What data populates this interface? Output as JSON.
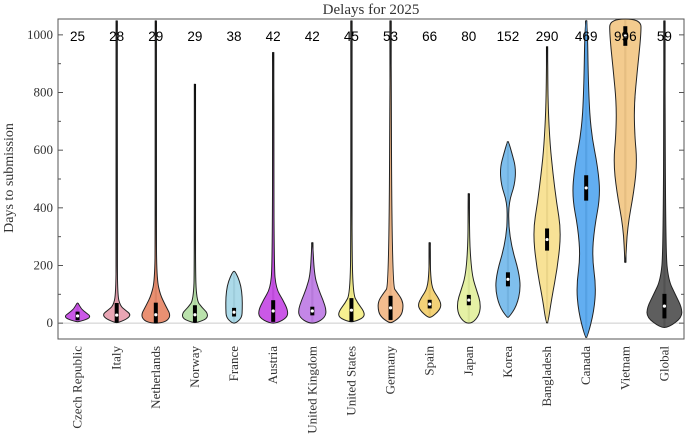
{
  "chart_data": {
    "type": "violin",
    "title": "Delays for 2025",
    "ylabel": "Days to submission",
    "xlabel": "",
    "ylim": [
      -55,
      1055
    ],
    "yticks": [
      0,
      200,
      400,
      600,
      800,
      1000
    ],
    "grid": false,
    "series": [
      {
        "category": "Czech Republic",
        "median": 25,
        "color": "#c74fe6",
        "min": 5,
        "max": 70,
        "shape": [
          [
            5,
            0.06
          ],
          [
            15,
            0.55
          ],
          [
            25,
            0.65
          ],
          [
            35,
            0.45
          ],
          [
            50,
            0.18
          ],
          [
            70,
            0.03
          ]
        ]
      },
      {
        "category": "Italy",
        "median": 28,
        "color": "#e8a0b0",
        "min": 2,
        "max": 1050,
        "shape": [
          [
            2,
            0.08
          ],
          [
            15,
            0.55
          ],
          [
            30,
            0.72
          ],
          [
            45,
            0.45
          ],
          [
            60,
            0.18
          ],
          [
            100,
            0.04
          ],
          [
            300,
            0.02
          ],
          [
            1050,
            0.02
          ]
        ]
      },
      {
        "category": "Netherlands",
        "median": 29,
        "color": "#e88a6a",
        "min": 0,
        "max": 1050,
        "shape": [
          [
            0,
            0.25
          ],
          [
            10,
            0.62
          ],
          [
            30,
            0.75
          ],
          [
            60,
            0.5
          ],
          [
            100,
            0.22
          ],
          [
            150,
            0.06
          ],
          [
            300,
            0.02
          ],
          [
            1050,
            0.02
          ]
        ]
      },
      {
        "category": "Norway",
        "median": 29,
        "color": "#b6e0a8",
        "min": 2,
        "max": 830,
        "shape": [
          [
            2,
            0.1
          ],
          [
            15,
            0.62
          ],
          [
            35,
            0.65
          ],
          [
            55,
            0.35
          ],
          [
            80,
            0.08
          ],
          [
            200,
            0.02
          ],
          [
            830,
            0.02
          ]
        ]
      },
      {
        "category": "France",
        "median": 38,
        "color": "#a8d8e8",
        "min": 0,
        "max": 180,
        "shape": [
          [
            0,
            0.1
          ],
          [
            20,
            0.4
          ],
          [
            50,
            0.42
          ],
          [
            90,
            0.42
          ],
          [
            130,
            0.35
          ],
          [
            160,
            0.2
          ],
          [
            180,
            0.04
          ]
        ]
      },
      {
        "category": "Austria",
        "median": 42,
        "color": "#c74fe6",
        "min": 0,
        "max": 940,
        "shape": [
          [
            0,
            0.2
          ],
          [
            20,
            0.72
          ],
          [
            45,
            0.75
          ],
          [
            80,
            0.5
          ],
          [
            120,
            0.15
          ],
          [
            200,
            0.04
          ],
          [
            940,
            0.02
          ]
        ]
      },
      {
        "category": "United Kingdom",
        "median": 42,
        "color": "#c080e6",
        "min": 0,
        "max": 280,
        "shape": [
          [
            0,
            0.2
          ],
          [
            20,
            0.65
          ],
          [
            45,
            0.72
          ],
          [
            80,
            0.55
          ],
          [
            120,
            0.3
          ],
          [
            170,
            0.1
          ],
          [
            280,
            0.02
          ]
        ]
      },
      {
        "category": "United States",
        "median": 45,
        "color": "#f5ef8a",
        "min": 5,
        "max": 1050,
        "shape": [
          [
            5,
            0.15
          ],
          [
            20,
            0.65
          ],
          [
            40,
            0.65
          ],
          [
            70,
            0.32
          ],
          [
            100,
            0.08
          ],
          [
            300,
            0.02
          ],
          [
            1050,
            0.02
          ]
        ]
      },
      {
        "category": "Germany",
        "median": 53,
        "color": "#f2b888",
        "min": 2,
        "max": 1050,
        "shape": [
          [
            2,
            0.1
          ],
          [
            25,
            0.55
          ],
          [
            55,
            0.65
          ],
          [
            80,
            0.6
          ],
          [
            105,
            0.35
          ],
          [
            130,
            0.08
          ],
          [
            1050,
            0.02
          ]
        ]
      },
      {
        "category": "Spain",
        "median": 66,
        "color": "#f2d070",
        "min": 20,
        "max": 280,
        "shape": [
          [
            20,
            0.1
          ],
          [
            45,
            0.5
          ],
          [
            65,
            0.6
          ],
          [
            90,
            0.42
          ],
          [
            120,
            0.12
          ],
          [
            180,
            0.03
          ],
          [
            280,
            0.02
          ]
        ]
      },
      {
        "category": "Japan",
        "median": 80,
        "color": "#e4f0a0",
        "min": 0,
        "max": 450,
        "shape": [
          [
            0,
            0.2
          ],
          [
            30,
            0.55
          ],
          [
            70,
            0.6
          ],
          [
            110,
            0.42
          ],
          [
            160,
            0.18
          ],
          [
            250,
            0.06
          ],
          [
            350,
            0.03
          ],
          [
            450,
            0.02
          ]
        ]
      },
      {
        "category": "Korea",
        "median": 152,
        "color": "#78bcec",
        "min": 20,
        "max": 630,
        "shape": [
          [
            20,
            0.05
          ],
          [
            60,
            0.45
          ],
          [
            120,
            0.65
          ],
          [
            180,
            0.55
          ],
          [
            260,
            0.2
          ],
          [
            340,
            0.03
          ],
          [
            420,
            0.05
          ],
          [
            480,
            0.35
          ],
          [
            540,
            0.4
          ],
          [
            590,
            0.2
          ],
          [
            630,
            0.03
          ]
        ]
      },
      {
        "category": "Bangladesh",
        "median": 290,
        "color": "#f8e090",
        "min": 0,
        "max": 960,
        "shape": [
          [
            0,
            0.05
          ],
          [
            80,
            0.22
          ],
          [
            200,
            0.55
          ],
          [
            320,
            0.72
          ],
          [
            420,
            0.48
          ],
          [
            520,
            0.3
          ],
          [
            620,
            0.15
          ],
          [
            760,
            0.05
          ],
          [
            960,
            0.02
          ]
        ]
      },
      {
        "category": "Canada",
        "median": 469,
        "color": "#5aaaf0",
        "min": -50,
        "max": 1050,
        "shape": [
          [
            -50,
            0.05
          ],
          [
            40,
            0.4
          ],
          [
            130,
            0.5
          ],
          [
            230,
            0.3
          ],
          [
            330,
            0.42
          ],
          [
            440,
            0.72
          ],
          [
            540,
            0.6
          ],
          [
            660,
            0.25
          ],
          [
            800,
            0.12
          ],
          [
            1050,
            0.06
          ]
        ]
      },
      {
        "category": "Vietnam",
        "median": 996,
        "color": "#f2c888",
        "min": 210,
        "max": 1060,
        "shape": [
          [
            210,
            0.02
          ],
          [
            330,
            0.1
          ],
          [
            460,
            0.45
          ],
          [
            560,
            0.6
          ],
          [
            650,
            0.48
          ],
          [
            760,
            0.45
          ],
          [
            880,
            0.62
          ],
          [
            1000,
            0.8
          ],
          [
            1060,
            0.8
          ]
        ]
      },
      {
        "category": "Global",
        "median": 59,
        "color": "#555555",
        "min": -15,
        "max": 1050,
        "shape": [
          [
            -15,
            0.22
          ],
          [
            20,
            0.9
          ],
          [
            55,
            0.88
          ],
          [
            100,
            0.55
          ],
          [
            150,
            0.2
          ],
          [
            250,
            0.06
          ],
          [
            1050,
            0.02
          ]
        ]
      }
    ],
    "median_labels": [
      "25",
      "28",
      "29",
      "29",
      "38",
      "42",
      "42",
      "45",
      "53",
      "66",
      "80",
      "152",
      "290",
      "469",
      "996",
      "59"
    ]
  }
}
